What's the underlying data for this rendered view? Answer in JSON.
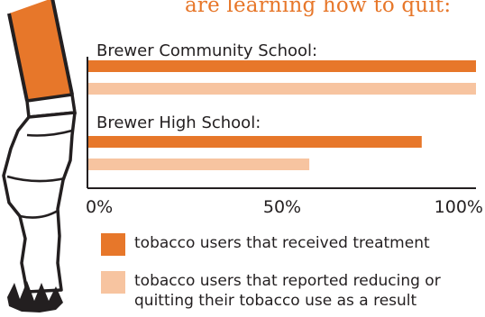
{
  "headline": "are learning how to quit:",
  "colors": {
    "accent": "#e7772a",
    "light": "#f7c4a0",
    "axis": "#231f20"
  },
  "chart_data": {
    "type": "bar",
    "orientation": "horizontal",
    "title": "",
    "xlabel": "",
    "ylabel": "",
    "xlim": [
      0,
      100
    ],
    "x_ticks": [
      "0%",
      "50%",
      "100%"
    ],
    "categories": [
      "Brewer Community School:",
      "Brewer High School:"
    ],
    "series": [
      {
        "name": "tobacco users that received treatment",
        "values": [
          100,
          86
        ]
      },
      {
        "name": "tobacco users that reported reducing or quitting their tobacco use as a result",
        "values": [
          100,
          57
        ]
      }
    ],
    "grid": false,
    "legend_position": "bottom"
  },
  "legend": [
    {
      "label": "tobacco users that received treatment"
    },
    {
      "label": "tobacco users that reported reducing or quitting their tobacco use as a result"
    }
  ]
}
